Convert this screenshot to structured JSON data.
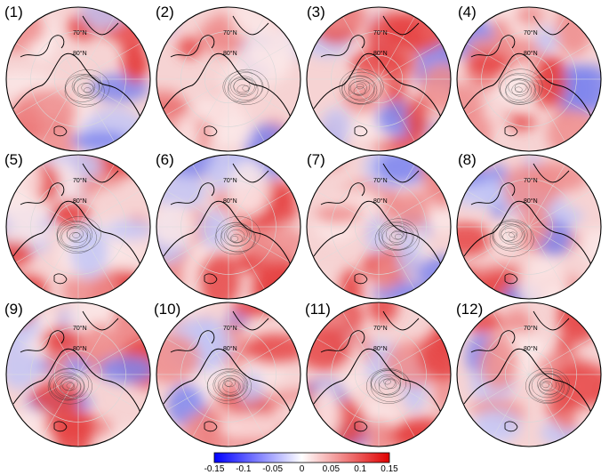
{
  "panels": [
    {
      "label": "(1)",
      "lat_label_70": "70°N",
      "lat_label_80": "80°N"
    },
    {
      "label": "(2)",
      "lat_label_70": "70°N",
      "lat_label_80": "80°N"
    },
    {
      "label": "(3)",
      "lat_label_70": "70°N",
      "lat_label_80": "80°N"
    },
    {
      "label": "(4)",
      "lat_label_70": "70°N",
      "lat_label_80": "80°N"
    },
    {
      "label": "(5)",
      "lat_label_70": "70°N",
      "lat_label_80": "80°N"
    },
    {
      "label": "(6)",
      "lat_label_70": "70°N",
      "lat_label_80": "80°N"
    },
    {
      "label": "(7)",
      "lat_label_70": "70°N",
      "lat_label_80": "80°N"
    },
    {
      "label": "(8)",
      "lat_label_70": "70°N",
      "lat_label_80": "80°N"
    },
    {
      "label": "(9)",
      "lat_label_70": "70°N",
      "lat_label_80": "80°N"
    },
    {
      "label": "(10)",
      "lat_label_70": "70°N",
      "lat_label_80": "80°N"
    },
    {
      "label": "(11)",
      "lat_label_70": "70°N",
      "lat_label_80": "80°N"
    },
    {
      "label": "(12)",
      "lat_label_70": "70°N",
      "lat_label_80": "80°N"
    }
  ],
  "colorbar": {
    "ticks": [
      "-0.15",
      "-0.1",
      "-0.05",
      "0",
      "0.05",
      "0.1",
      "0.15"
    ],
    "min": -0.15,
    "max": 0.15,
    "colors": {
      "negative": "#0000ff",
      "zero": "#ffffff",
      "positive": "#e00000"
    }
  },
  "colors": {
    "land_outline": "#000000",
    "contour": "#333333",
    "grid": "#d8d8d8"
  }
}
